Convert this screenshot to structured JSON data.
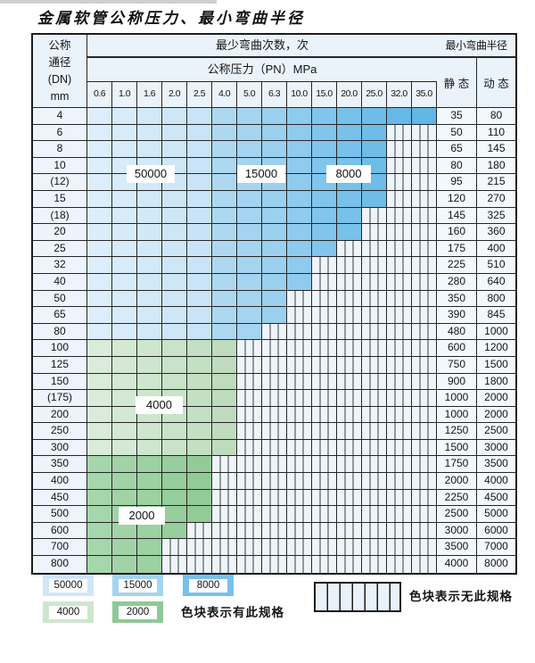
{
  "title": "金属软管公称压力、最小弯曲半径",
  "table": {
    "dn_header_lines": [
      "公称",
      "通径",
      "(DN)",
      "mm"
    ],
    "bend_cycles_header": "最少弯曲次数，次",
    "pressure_header": "公称压力（PN）MPa",
    "radius_header": "最小弯曲半径",
    "static_header": "静 态",
    "dynamic_header": "动 态",
    "pressure_columns": [
      "0.6",
      "1.0",
      "1.6",
      "2.0",
      "2.5",
      "4.0",
      "5.0",
      "6.3",
      "10.0",
      "15.0",
      "20.0",
      "25.0",
      "32.0",
      "35.0"
    ],
    "rows": [
      {
        "dn": "4",
        "zone": "blue",
        "last_col": 13,
        "max_pn": "35.0",
        "static": "35",
        "dynamic": "80"
      },
      {
        "dn": "6",
        "zone": "blue",
        "last_col": 11,
        "max_pn": "25.0",
        "static": "50",
        "dynamic": "110"
      },
      {
        "dn": "8",
        "zone": "blue",
        "last_col": 11,
        "max_pn": "25.0",
        "static": "65",
        "dynamic": "145"
      },
      {
        "dn": "10",
        "zone": "blue",
        "last_col": 11,
        "max_pn": "25.0",
        "static": "80",
        "dynamic": "180"
      },
      {
        "dn": "(12)",
        "zone": "blue",
        "last_col": 11,
        "max_pn": "25.0",
        "static": "95",
        "dynamic": "215"
      },
      {
        "dn": "15",
        "zone": "blue",
        "last_col": 11,
        "max_pn": "25.0",
        "static": "120",
        "dynamic": "270"
      },
      {
        "dn": "(18)",
        "zone": "blue",
        "last_col": 10,
        "max_pn": "20.0",
        "static": "145",
        "dynamic": "325"
      },
      {
        "dn": "20",
        "zone": "blue",
        "last_col": 10,
        "max_pn": "20.0",
        "static": "160",
        "dynamic": "360"
      },
      {
        "dn": "25",
        "zone": "blue",
        "last_col": 9,
        "max_pn": "15.0",
        "static": "175",
        "dynamic": "400"
      },
      {
        "dn": "32",
        "zone": "blue",
        "last_col": 8,
        "max_pn": "10.0",
        "static": "225",
        "dynamic": "510"
      },
      {
        "dn": "40",
        "zone": "blue",
        "last_col": 8,
        "max_pn": "10.0",
        "static": "280",
        "dynamic": "640"
      },
      {
        "dn": "50",
        "zone": "blue",
        "last_col": 7,
        "max_pn": "6.3",
        "static": "350",
        "dynamic": "800"
      },
      {
        "dn": "65",
        "zone": "blue",
        "last_col": 7,
        "max_pn": "6.3",
        "static": "390",
        "dynamic": "845"
      },
      {
        "dn": "80",
        "zone": "blue",
        "last_col": 6,
        "max_pn": "5.0",
        "static": "480",
        "dynamic": "1000"
      },
      {
        "dn": "100",
        "zone": "4000",
        "last_col": 5,
        "max_pn": "4.0",
        "static": "600",
        "dynamic": "1200"
      },
      {
        "dn": "125",
        "zone": "4000",
        "last_col": 5,
        "max_pn": "4.0",
        "static": "750",
        "dynamic": "1500"
      },
      {
        "dn": "150",
        "zone": "4000",
        "last_col": 5,
        "max_pn": "4.0",
        "static": "900",
        "dynamic": "1800"
      },
      {
        "dn": "(175)",
        "zone": "4000",
        "last_col": 5,
        "max_pn": "4.0",
        "static": "1000",
        "dynamic": "2000"
      },
      {
        "dn": "200",
        "zone": "4000",
        "last_col": 5,
        "max_pn": "4.0",
        "static": "1000",
        "dynamic": "2000"
      },
      {
        "dn": "250",
        "zone": "4000",
        "last_col": 5,
        "max_pn": "4.0",
        "static": "1250",
        "dynamic": "2500"
      },
      {
        "dn": "300",
        "zone": "4000",
        "last_col": 5,
        "max_pn": "4.0",
        "static": "1500",
        "dynamic": "3000"
      },
      {
        "dn": "350",
        "zone": "2000",
        "last_col": 4,
        "max_pn": "2.5",
        "static": "1750",
        "dynamic": "3500"
      },
      {
        "dn": "400",
        "zone": "2000",
        "last_col": 4,
        "max_pn": "2.5",
        "static": "2000",
        "dynamic": "4000"
      },
      {
        "dn": "450",
        "zone": "2000",
        "last_col": 4,
        "max_pn": "2.5",
        "static": "2250",
        "dynamic": "4500"
      },
      {
        "dn": "500",
        "zone": "2000",
        "last_col": 4,
        "max_pn": "2.5",
        "static": "2500",
        "dynamic": "5000"
      },
      {
        "dn": "600",
        "zone": "2000",
        "last_col": 3,
        "max_pn": "2.0",
        "static": "3000",
        "dynamic": "6000"
      },
      {
        "dn": "700",
        "zone": "2000",
        "last_col": 2,
        "max_pn": "1.6",
        "static": "3500",
        "dynamic": "7000"
      },
      {
        "dn": "800",
        "zone": "2000",
        "last_col": 2,
        "max_pn": "1.6",
        "static": "4000",
        "dynamic": "8000"
      }
    ]
  },
  "cycle_labels": {
    "blue_50000": "50000",
    "blue_15000": "15000",
    "blue_8000": "8000",
    "green_4000": "4000",
    "green_2000": "2000"
  },
  "legend": {
    "items": [
      {
        "value": "50000",
        "color": "#cfe7f8"
      },
      {
        "value": "15000",
        "color": "#a5d4f1"
      },
      {
        "value": "8000",
        "color": "#77c1ea"
      },
      {
        "value": "4000",
        "color": "#cee6ce"
      },
      {
        "value": "2000",
        "color": "#8fc996"
      }
    ],
    "has_spec_text": "色块表示有此规格",
    "no_spec_text": "色块表示无此规格"
  },
  "colors": {
    "blue_columns": [
      "#dceefb",
      "#d7ebf9",
      "#d2e9f8",
      "#cee7f7",
      "#c9e4f6",
      "#aed8f2",
      "#a5d4f1",
      "#9bd0ef",
      "#8fcbee",
      "#81c5ec",
      "#77c1ea",
      "#6ebde8",
      "#66b9e6",
      "#60b6e5"
    ],
    "green_4000_columns": [
      "#d9ecd9",
      "#d4e9d4",
      "#cee6ce",
      "#c9e3c9",
      "#c3e0c3",
      "#bedcbd"
    ],
    "green_2000_columns": [
      "#a6d6ac",
      "#a1d3a7",
      "#9cd1a2",
      "#97ce9d",
      "#92cb98",
      "#8dc893"
    ],
    "grid_line": "#262626",
    "header_bg": "#ebf3fa"
  },
  "chart_data": {
    "type": "heatmap",
    "title": "金属软管公称压力、最小弯曲半径",
    "xlabel": "公称压力（PN）MPa",
    "ylabel": "公称通径 (DN) mm",
    "pressure_columns_MPa": [
      0.6,
      1.0,
      1.6,
      2.0,
      2.5,
      4.0,
      5.0,
      6.3,
      10.0,
      15.0,
      20.0,
      25.0,
      32.0,
      35.0
    ],
    "dn_rows": [
      "4",
      "6",
      "8",
      "10",
      "(12)",
      "15",
      "(18)",
      "20",
      "25",
      "32",
      "40",
      "50",
      "65",
      "80",
      "100",
      "125",
      "150",
      "(175)",
      "200",
      "250",
      "300",
      "350",
      "400",
      "450",
      "500",
      "600",
      "700",
      "800"
    ],
    "max_pressure_with_spec_MPa": [
      35.0,
      25.0,
      25.0,
      25.0,
      25.0,
      25.0,
      20.0,
      20.0,
      15.0,
      10.0,
      10.0,
      6.3,
      6.3,
      5.0,
      4.0,
      4.0,
      4.0,
      4.0,
      4.0,
      4.0,
      4.0,
      2.5,
      2.5,
      2.5,
      2.5,
      2.0,
      1.6,
      1.6
    ],
    "min_bend_radius_static": [
      35,
      50,
      65,
      80,
      95,
      120,
      145,
      160,
      175,
      225,
      280,
      350,
      390,
      480,
      600,
      750,
      900,
      1000,
      1000,
      1250,
      1500,
      1750,
      2000,
      2250,
      2500,
      3000,
      3500,
      4000
    ],
    "min_bend_radius_dynamic": [
      80,
      110,
      145,
      180,
      215,
      270,
      325,
      360,
      400,
      510,
      640,
      800,
      845,
      1000,
      1200,
      1500,
      1800,
      2000,
      2000,
      2500,
      3000,
      3500,
      4000,
      4500,
      5000,
      6000,
      7000,
      8000
    ],
    "bend_cycles_color_zones": [
      {
        "cycles": 50000,
        "color": "light blue",
        "applies": "PN 0.6–2.5, DN 4–80"
      },
      {
        "cycles": 15000,
        "color": "medium blue",
        "applies": "PN 4.0–6.3, DN 4–80"
      },
      {
        "cycles": 8000,
        "color": "dark blue",
        "applies": "PN 10.0–35.0, DN 4–80"
      },
      {
        "cycles": 4000,
        "color": "light green",
        "applies": "DN 100–300"
      },
      {
        "cycles": 2000,
        "color": "dark green",
        "applies": "DN 350–800"
      }
    ],
    "striped_cells_meaning": "无此规格（no such specification）",
    "legend_position": "bottom"
  }
}
